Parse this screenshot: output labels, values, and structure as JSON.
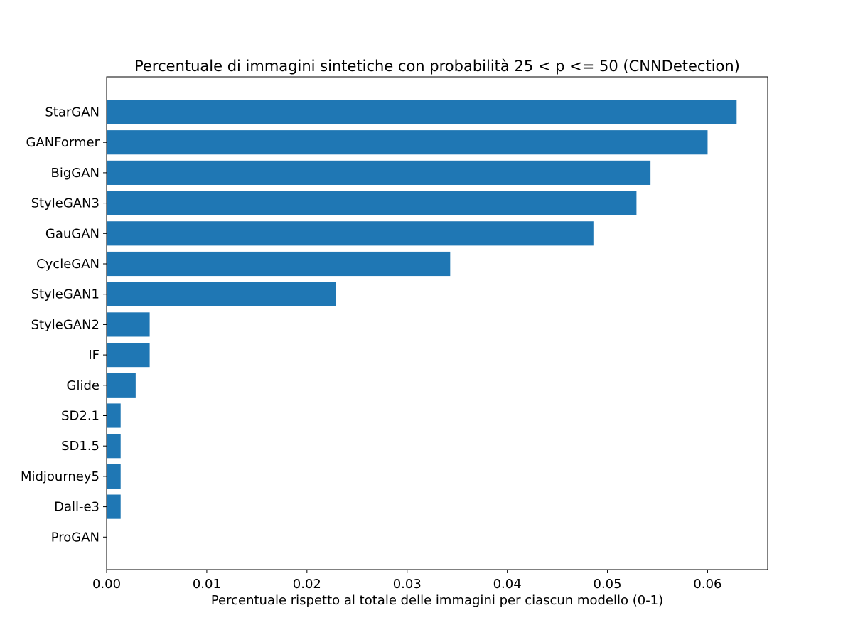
{
  "chart_data": {
    "type": "bar",
    "orientation": "horizontal",
    "title": "Percentuale di immagini sintetiche con probabilità 25 < p <= 50 (CNNDetection)",
    "xlabel": "Percentuale rispetto al totale delle immagini per ciascun modello (0-1)",
    "ylabel": "",
    "xlim": [
      0.0,
      0.066
    ],
    "xticks": [
      "0.00",
      "0.01",
      "0.02",
      "0.03",
      "0.04",
      "0.05",
      "0.06"
    ],
    "grid": false,
    "bar_color": "#1f77b4",
    "categories": [
      "StarGAN",
      "GANFormer",
      "BigGAN",
      "StyleGAN3",
      "GauGAN",
      "CycleGAN",
      "StyleGAN1",
      "StyleGAN2",
      "IF",
      "Glide",
      "SD2.1",
      "SD1.5",
      "Midjourney5",
      "Dall-e3",
      "ProGAN"
    ],
    "values": [
      0.0629,
      0.06,
      0.0543,
      0.0529,
      0.0486,
      0.0343,
      0.0229,
      0.0043,
      0.0043,
      0.0029,
      0.0014,
      0.0014,
      0.0014,
      0.0014,
      0.0
    ]
  }
}
